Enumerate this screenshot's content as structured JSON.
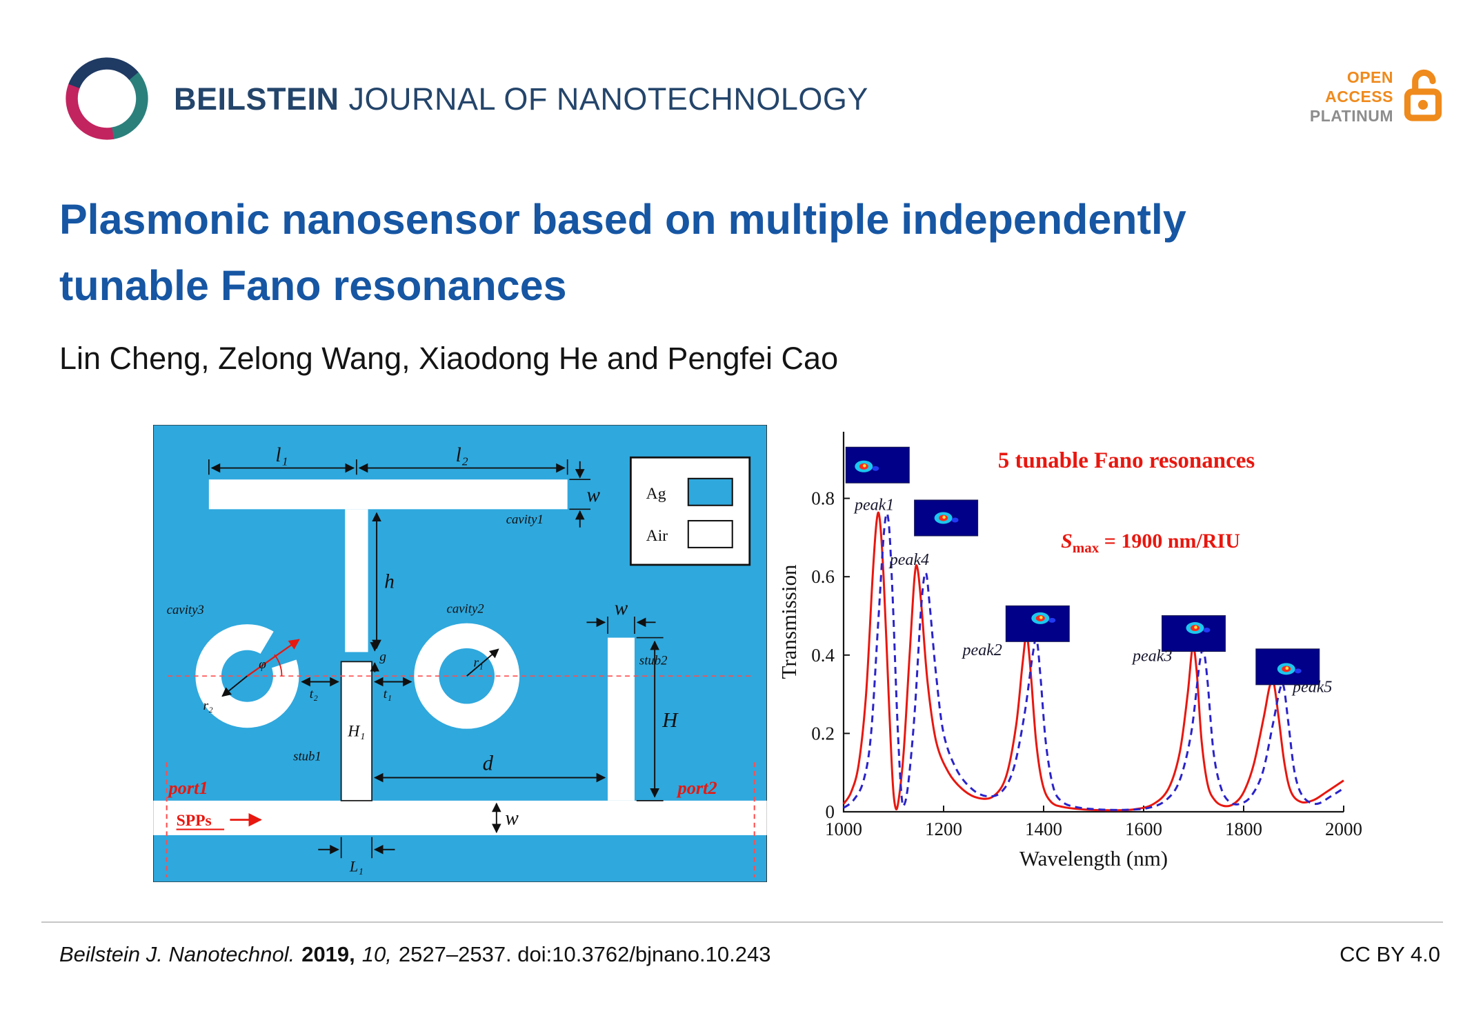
{
  "header": {
    "journal_name_bold": "BEILSTEIN",
    "journal_name_rest": "JOURNAL OF NANOTECHNOLOGY",
    "open_access": {
      "open": "OPEN",
      "access": "ACCESS",
      "platinum": "PLATINUM"
    }
  },
  "article": {
    "title_line1": "Plasmonic nanosensor based on multiple independently",
    "title_line2": "tunable Fano resonances",
    "authors": "Lin Cheng, Zelong Wang, Xiaodong He and Pengfei Cao"
  },
  "schematic": {
    "labels": {
      "l1": "l₁",
      "l2": "l₂",
      "w": "w",
      "h": "h",
      "g": "g",
      "d": "d",
      "H": "H",
      "H1": "H₁",
      "L1": "L₁",
      "t1": "t₁",
      "t2": "t₂",
      "r1": "r₁",
      "r2": "r₂",
      "phi": "φ",
      "cavity1": "cavity1",
      "cavity2": "cavity2",
      "cavity3": "cavity3",
      "stub1": "stub1",
      "stub2": "stub2",
      "port1": "port1",
      "port2": "port2",
      "spps": "SPPs",
      "legend_ag": "Ag",
      "legend_air": "Air"
    }
  },
  "chart_data": {
    "type": "line",
    "title": "5 tunable Fano resonances",
    "sensitivity": {
      "s": "S",
      "sub": "max",
      "rest": " = 1900 nm/RIU"
    },
    "xlabel": "Wavelength (nm)",
    "ylabel": "Transmission",
    "xlim": [
      1000,
      2000
    ],
    "ylim": [
      0,
      0.97
    ],
    "xticks": [
      1000,
      1200,
      1400,
      1600,
      1800,
      2000
    ],
    "yticks": [
      0,
      0.2,
      0.4,
      0.6,
      0.8
    ],
    "grid": false,
    "legend_position": "none",
    "series": [
      {
        "name": "solid red spectrum",
        "color": "#e8170f",
        "style": "solid",
        "points": [
          [
            1000,
            0.02
          ],
          [
            1015,
            0.05
          ],
          [
            1030,
            0.12
          ],
          [
            1045,
            0.3
          ],
          [
            1058,
            0.6
          ],
          [
            1066,
            0.74
          ],
          [
            1072,
            0.75
          ],
          [
            1080,
            0.6
          ],
          [
            1090,
            0.3
          ],
          [
            1098,
            0.08
          ],
          [
            1104,
            0.01
          ],
          [
            1110,
            0.03
          ],
          [
            1120,
            0.15
          ],
          [
            1132,
            0.4
          ],
          [
            1142,
            0.6
          ],
          [
            1148,
            0.62
          ],
          [
            1156,
            0.52
          ],
          [
            1168,
            0.33
          ],
          [
            1185,
            0.18
          ],
          [
            1210,
            0.1
          ],
          [
            1240,
            0.055
          ],
          [
            1270,
            0.035
          ],
          [
            1300,
            0.04
          ],
          [
            1325,
            0.09
          ],
          [
            1345,
            0.22
          ],
          [
            1358,
            0.38
          ],
          [
            1366,
            0.45
          ],
          [
            1374,
            0.36
          ],
          [
            1385,
            0.18
          ],
          [
            1398,
            0.07
          ],
          [
            1415,
            0.025
          ],
          [
            1440,
            0.012
          ],
          [
            1480,
            0.006
          ],
          [
            1530,
            0.004
          ],
          [
            1580,
            0.006
          ],
          [
            1620,
            0.02
          ],
          [
            1650,
            0.06
          ],
          [
            1672,
            0.15
          ],
          [
            1688,
            0.3
          ],
          [
            1698,
            0.42
          ],
          [
            1706,
            0.36
          ],
          [
            1716,
            0.18
          ],
          [
            1728,
            0.07
          ],
          [
            1742,
            0.03
          ],
          [
            1760,
            0.015
          ],
          [
            1780,
            0.02
          ],
          [
            1800,
            0.05
          ],
          [
            1820,
            0.12
          ],
          [
            1840,
            0.24
          ],
          [
            1852,
            0.32
          ],
          [
            1860,
            0.33
          ],
          [
            1870,
            0.24
          ],
          [
            1882,
            0.12
          ],
          [
            1895,
            0.05
          ],
          [
            1915,
            0.025
          ],
          [
            1940,
            0.03
          ],
          [
            1965,
            0.05
          ],
          [
            2000,
            0.08
          ]
        ]
      },
      {
        "name": "dashed blue spectrum",
        "color": "#2a23c9",
        "style": "dashed",
        "points": [
          [
            1000,
            0.01
          ],
          [
            1020,
            0.03
          ],
          [
            1040,
            0.08
          ],
          [
            1055,
            0.2
          ],
          [
            1070,
            0.5
          ],
          [
            1082,
            0.73
          ],
          [
            1090,
            0.74
          ],
          [
            1098,
            0.55
          ],
          [
            1108,
            0.22
          ],
          [
            1116,
            0.04
          ],
          [
            1122,
            0.02
          ],
          [
            1130,
            0.08
          ],
          [
            1142,
            0.25
          ],
          [
            1155,
            0.52
          ],
          [
            1164,
            0.61
          ],
          [
            1172,
            0.53
          ],
          [
            1185,
            0.35
          ],
          [
            1200,
            0.2
          ],
          [
            1225,
            0.11
          ],
          [
            1255,
            0.06
          ],
          [
            1285,
            0.04
          ],
          [
            1315,
            0.05
          ],
          [
            1340,
            0.11
          ],
          [
            1362,
            0.25
          ],
          [
            1378,
            0.4
          ],
          [
            1386,
            0.44
          ],
          [
            1394,
            0.34
          ],
          [
            1405,
            0.17
          ],
          [
            1420,
            0.06
          ],
          [
            1438,
            0.025
          ],
          [
            1465,
            0.012
          ],
          [
            1510,
            0.006
          ],
          [
            1560,
            0.005
          ],
          [
            1610,
            0.01
          ],
          [
            1645,
            0.03
          ],
          [
            1672,
            0.08
          ],
          [
            1695,
            0.2
          ],
          [
            1712,
            0.38
          ],
          [
            1720,
            0.41
          ],
          [
            1728,
            0.33
          ],
          [
            1740,
            0.15
          ],
          [
            1755,
            0.06
          ],
          [
            1772,
            0.025
          ],
          [
            1792,
            0.02
          ],
          [
            1815,
            0.04
          ],
          [
            1838,
            0.1
          ],
          [
            1858,
            0.22
          ],
          [
            1872,
            0.31
          ],
          [
            1880,
            0.32
          ],
          [
            1890,
            0.22
          ],
          [
            1902,
            0.1
          ],
          [
            1918,
            0.04
          ],
          [
            1945,
            0.02
          ],
          [
            1975,
            0.04
          ],
          [
            2000,
            0.06
          ]
        ]
      }
    ],
    "peak_labels": [
      {
        "text": "peak1",
        "x": 1022,
        "y": 0.77
      },
      {
        "text": "peak4",
        "x": 1092,
        "y": 0.63
      },
      {
        "text": "peak2",
        "x": 1238,
        "y": 0.4
      },
      {
        "text": "peak3",
        "x": 1578,
        "y": 0.385
      },
      {
        "text": "peak5",
        "x": 1898,
        "y": 0.305
      }
    ],
    "insets": [
      {
        "x": 1068,
        "y": 0.885
      },
      {
        "x": 1205,
        "y": 0.75
      },
      {
        "x": 1388,
        "y": 0.48
      },
      {
        "x": 1700,
        "y": 0.455
      },
      {
        "x": 1888,
        "y": 0.37
      }
    ]
  },
  "footer": {
    "journal_abbrev": "Beilstein J. Nanotechnol.",
    "year": "2019,",
    "volume": "10,",
    "pages_doi": "2527–2537. doi:10.3762/bjnano.10.243",
    "license": "CC BY 4.0"
  },
  "colors": {
    "title_blue": "#1656a3",
    "figure_blue": "#2FA8DD",
    "accent_red": "#e8170f",
    "dash_blue": "#2a23c9",
    "oa_orange": "#ef8a1c"
  }
}
